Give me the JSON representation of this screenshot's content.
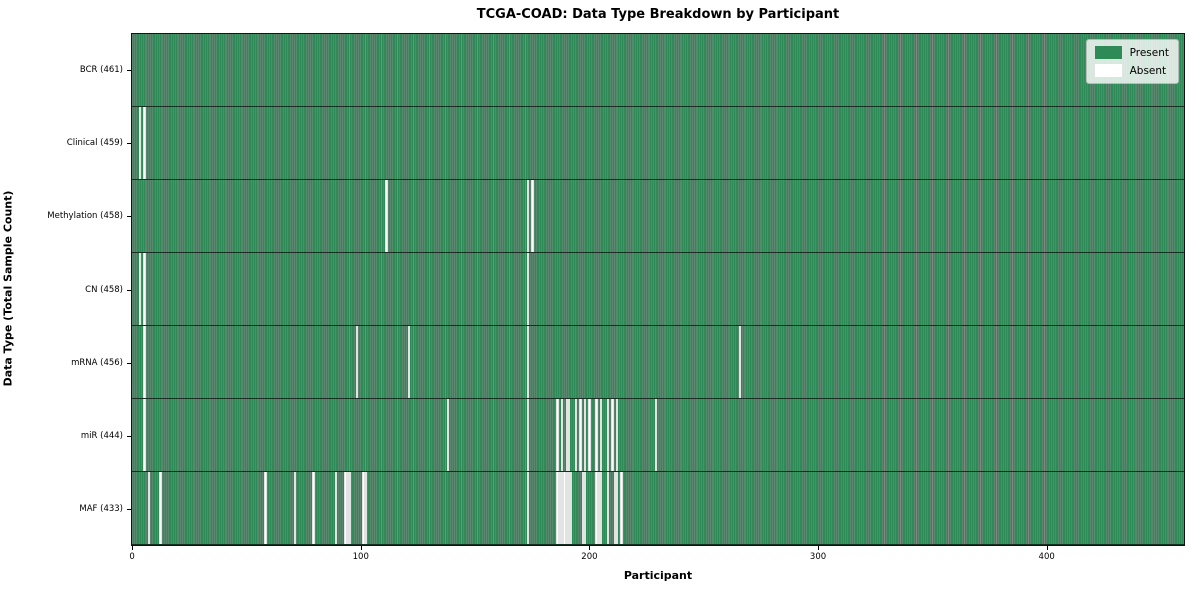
{
  "title": "TCGA-COAD: Data Type Breakdown by Participant",
  "xlabel": "Participant",
  "ylabel": "Data Type (Total Sample Count)",
  "legend": {
    "present_label": "Present",
    "absent_label": "Absent"
  },
  "colors": {
    "present": "#2e8b57",
    "absent": "#ffffff",
    "cell_edge": "rgba(0,0,0,0.48)"
  },
  "chart_data": {
    "type": "heatmap",
    "title": "TCGA-COAD: Data Type Breakdown by Participant",
    "xlabel": "Participant",
    "ylabel": "Data Type (Total Sample Count)",
    "n_participants": 461,
    "x_ticks": [
      0,
      100,
      200,
      300,
      400
    ],
    "legend_position": "upper right",
    "cell_states": [
      "Present",
      "Absent"
    ],
    "series": [
      {
        "name": "BCR",
        "label": "BCR (461)",
        "present_count": 461,
        "absent_participants": []
      },
      {
        "name": "Clinical",
        "label": "Clinical (459)",
        "present_count": 459,
        "absent_participants": [
          3,
          5
        ]
      },
      {
        "name": "Methylation",
        "label": "Methylation (458)",
        "present_count": 458,
        "absent_participants": [
          111,
          173,
          175
        ]
      },
      {
        "name": "CN",
        "label": "CN (458)",
        "present_count": 458,
        "absent_participants": [
          3,
          5,
          173
        ]
      },
      {
        "name": "mRNA",
        "label": "mRNA (456)",
        "present_count": 456,
        "absent_participants": [
          5,
          98,
          121,
          173,
          266
        ]
      },
      {
        "name": "miR",
        "label": "miR (444)",
        "present_count": 444,
        "absent_participants": [
          5,
          138,
          173,
          186,
          188,
          190,
          191,
          194,
          196,
          198,
          200,
          203,
          205,
          208,
          210,
          212,
          229
        ]
      },
      {
        "name": "MAF",
        "label": "MAF (433)",
        "present_count": 433,
        "absent_participants": [
          7,
          12,
          58,
          71,
          79,
          89,
          93,
          94,
          95,
          101,
          102,
          173,
          186,
          187,
          188,
          189,
          190,
          191,
          192,
          197,
          198,
          203,
          204,
          205,
          208,
          211,
          212,
          214
        ]
      }
    ]
  }
}
